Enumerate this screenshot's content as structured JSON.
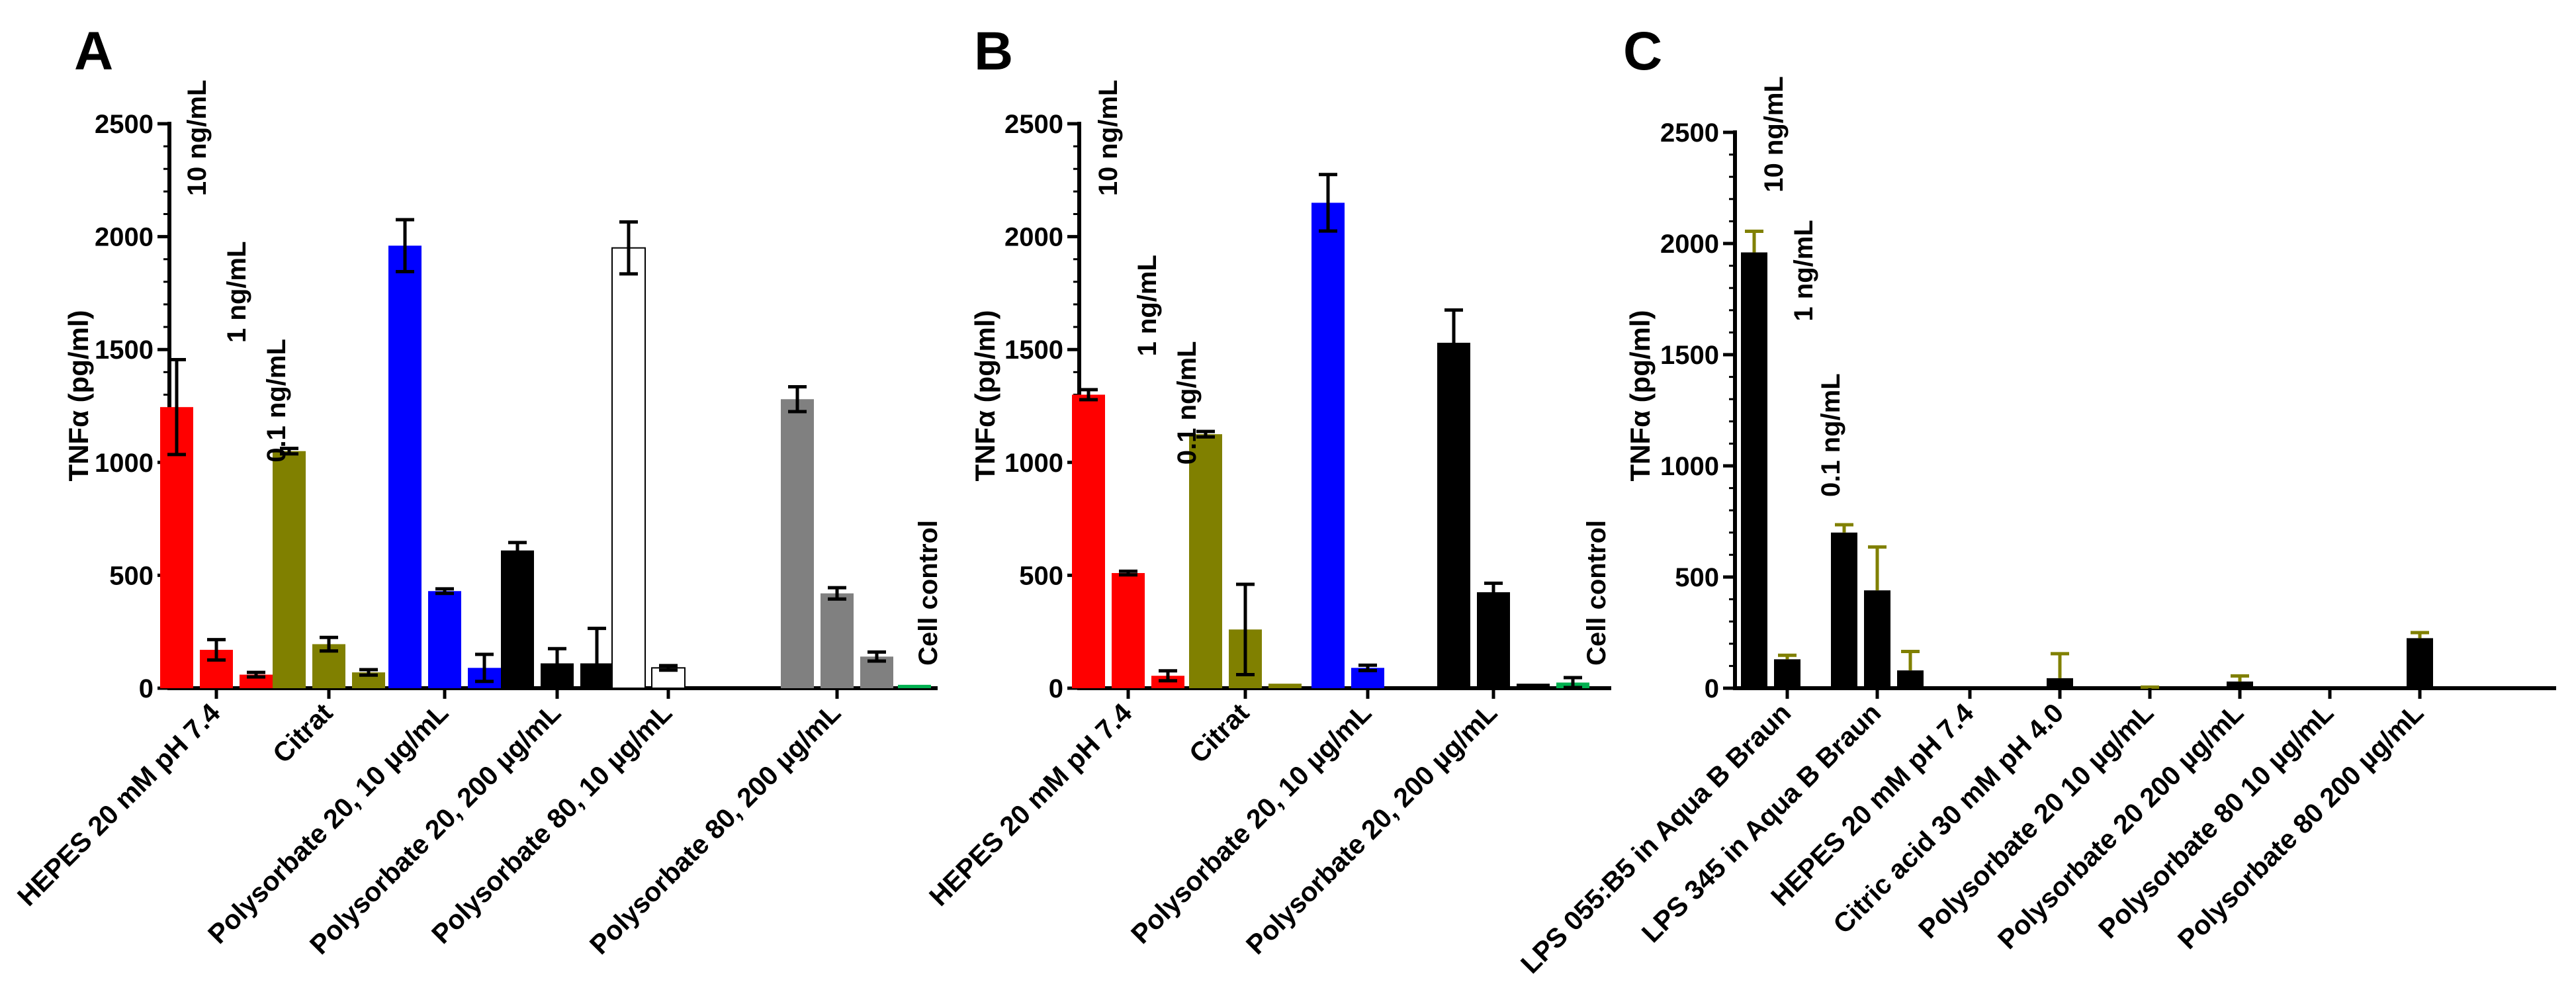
{
  "chart_data": [
    {
      "panel": "A",
      "type": "bar",
      "ylabel": "TNFα (pg/ml)",
      "ylim": [
        0,
        2500
      ],
      "yticks": [
        0,
        500,
        1000,
        1500,
        2000,
        2500
      ],
      "groups": [
        {
          "label": "HEPES 20 mM pH 7.4",
          "color": "#ff0000",
          "bars": [
            {
              "value": 1245,
              "err": 210
            },
            {
              "value": 170,
              "err": 45
            },
            {
              "value": 60,
              "err": 10
            }
          ]
        },
        {
          "label": "Citrat",
          "color": "#808000",
          "bars": [
            {
              "value": 1050,
              "err": 12
            },
            {
              "value": 195,
              "err": 30
            },
            {
              "value": 70,
              "err": 12
            }
          ]
        },
        {
          "label": "Polysorbate 20, 10 µg/mL",
          "color": "#0000ff",
          "bars": [
            {
              "value": 1960,
              "err": 115
            },
            {
              "value": 430,
              "err": 10
            },
            {
              "value": 90,
              "err": 60
            }
          ]
        },
        {
          "label": "Polysorbate 20, 200 µg/mL",
          "color": "#000000",
          "bars": [
            {
              "value": 610,
              "err": 35
            },
            {
              "value": 110,
              "err": 65
            },
            {
              "value": 110,
              "err": 155
            }
          ]
        },
        {
          "label": "Polysorbate 80, 10 µg/mL",
          "color": "#ffffff",
          "bars": [
            {
              "value": 1950,
              "err": 115
            },
            {
              "value": 90,
              "err": 10
            }
          ]
        },
        {
          "label": "Polysorbate 80, 200 µg/mL",
          "color": "#808080",
          "bars": [
            {
              "value": 1280,
              "err": 55
            },
            {
              "value": 420,
              "err": 25
            },
            {
              "value": 140,
              "err": 20
            }
          ]
        },
        {
          "label": "",
          "color": "#00b050",
          "bars": [
            {
              "value": 15,
              "err": 0
            }
          ]
        }
      ],
      "annotations": [
        "10 ng/mL",
        "1 ng/mL",
        "0.1 ng/mL",
        "Cell control"
      ]
    },
    {
      "panel": "B",
      "type": "bar",
      "ylabel": "TNFα (pg/ml)",
      "ylim": [
        0,
        2500
      ],
      "yticks": [
        0,
        500,
        1000,
        1500,
        2000,
        2500
      ],
      "groups": [
        {
          "label": "HEPES 20 mM pH 7.4",
          "color": "#ff0000",
          "bars": [
            {
              "value": 1300,
              "err": 22
            },
            {
              "value": 510,
              "err": 8
            },
            {
              "value": 55,
              "err": 22
            }
          ]
        },
        {
          "label": "Citrat",
          "color": "#808000",
          "bars": [
            {
              "value": 1125,
              "err": 12
            },
            {
              "value": 260,
              "err": 200
            },
            {
              "value": 20,
              "err": 0
            }
          ]
        },
        {
          "label": "Polysorbate 20, 10 µg/mL",
          "color": "#0000ff",
          "bars": [
            {
              "value": 2150,
              "err": 125
            },
            {
              "value": 90,
              "err": 12
            }
          ]
        },
        {
          "label": "Polysorbate 20, 200 µg/mL",
          "color": "#000000",
          "bars": [
            {
              "value": 1530,
              "err": 145
            },
            {
              "value": 425,
              "err": 40
            },
            {
              "value": 20,
              "err": 0
            }
          ]
        },
        {
          "label": "",
          "color": "#00b050",
          "bars": [
            {
              "value": 25,
              "err": 22
            }
          ]
        }
      ],
      "annotations": [
        "10 ng/mL",
        "1 ng/mL",
        "0.1 ng/mL",
        "Cell control"
      ]
    },
    {
      "panel": "C",
      "type": "bar",
      "ylabel": "TNFα (pg/ml)",
      "ylim": [
        0,
        2500
      ],
      "yticks": [
        0,
        500,
        1000,
        1500,
        2000,
        2500
      ],
      "groups": [
        {
          "label": "LPS 055:B5 in Aqua B Braun",
          "color": "#000000",
          "bars": [
            {
              "value": 1960,
              "err": 95
            },
            {
              "value": 130,
              "err": 18
            }
          ]
        },
        {
          "label": "LPS 345 in Aqua B Braun",
          "color": "#000000",
          "bars": [
            {
              "value": 700,
              "err": 35
            },
            {
              "value": 440,
              "err": 195
            },
            {
              "value": 80,
              "err": 85
            }
          ]
        },
        {
          "label": "HEPES 20 mM pH 7.4",
          "color": "#000000",
          "bars": [
            {
              "value": 0,
              "err": 0
            }
          ]
        },
        {
          "label": "Citric acid 30 mM pH 4.0",
          "color": "#000000",
          "bars": [
            {
              "value": 45,
              "err": 110
            }
          ]
        },
        {
          "label": "Polysorbate 20 10 µg/mL",
          "color": "#000000",
          "bars": [
            {
              "value": 0,
              "err": 5
            }
          ]
        },
        {
          "label": "Polysorbate 20 200 µg/mL",
          "color": "#000000",
          "bars": [
            {
              "value": 30,
              "err": 25
            }
          ]
        },
        {
          "label": "Polysorbate 80 10 µg/mL",
          "color": "#000000",
          "bars": [
            {
              "value": 0,
              "err": 0
            }
          ]
        },
        {
          "label": "Polysorbate 80 200 µg/mL",
          "color": "#000000",
          "bars": [
            {
              "value": 225,
              "err": 25
            }
          ]
        }
      ],
      "annotations": [
        "10 ng/mL",
        "1 ng/mL",
        "0.1 ng/mL"
      ]
    }
  ]
}
